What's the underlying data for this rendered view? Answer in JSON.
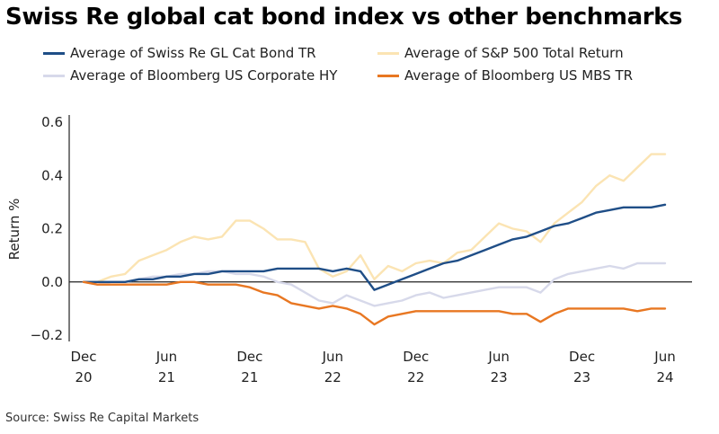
{
  "title": "Swiss Re global cat bond index vs other benchmarks",
  "source": "Source: Swiss Re Capital Markets",
  "chart_data": {
    "type": "line",
    "title": "Swiss Re global cat bond index vs other benchmarks",
    "xlabel": "",
    "ylabel": "Return %",
    "xlim": [
      "2020-12",
      "2024-06"
    ],
    "ylim": [
      -0.2,
      0.6
    ],
    "yticks": [
      "0.6",
      "0.4",
      "0.2",
      "0.0",
      "−0.2"
    ],
    "xticks": [
      {
        "date": "2020-12",
        "line1": "Dec",
        "line2": "20"
      },
      {
        "date": "2021-06",
        "line1": "Jun",
        "line2": "21"
      },
      {
        "date": "2021-12",
        "line1": "Dec",
        "line2": "21"
      },
      {
        "date": "2022-06",
        "line1": "Jun",
        "line2": "22"
      },
      {
        "date": "2022-12",
        "line1": "Dec",
        "line2": "22"
      },
      {
        "date": "2023-06",
        "line1": "Jun",
        "line2": "23"
      },
      {
        "date": "2023-12",
        "line1": "Dec",
        "line2": "23"
      },
      {
        "date": "2024-06",
        "line1": "Jun",
        "line2": "24"
      }
    ],
    "grid": false,
    "zero_line": true,
    "legend_position": "top",
    "x": [
      "2020-12",
      "2021-01",
      "2021-02",
      "2021-03",
      "2021-04",
      "2021-05",
      "2021-06",
      "2021-07",
      "2021-08",
      "2021-09",
      "2021-10",
      "2021-11",
      "2021-12",
      "2022-01",
      "2022-02",
      "2022-03",
      "2022-04",
      "2022-05",
      "2022-06",
      "2022-07",
      "2022-08",
      "2022-09",
      "2022-10",
      "2022-11",
      "2022-12",
      "2023-01",
      "2023-02",
      "2023-03",
      "2023-04",
      "2023-05",
      "2023-06",
      "2023-07",
      "2023-08",
      "2023-09",
      "2023-10",
      "2023-11",
      "2023-12",
      "2024-01",
      "2024-02",
      "2024-03",
      "2024-04",
      "2024-05",
      "2024-06"
    ],
    "series": [
      {
        "name": "Average of S&P 500 Total Return",
        "color": "#fbe4b3",
        "values": [
          0.0,
          0.0,
          0.02,
          0.03,
          0.08,
          0.1,
          0.12,
          0.15,
          0.17,
          0.16,
          0.17,
          0.23,
          0.23,
          0.2,
          0.16,
          0.16,
          0.15,
          0.05,
          0.02,
          0.04,
          0.1,
          0.01,
          0.06,
          0.04,
          0.07,
          0.08,
          0.07,
          0.11,
          0.12,
          0.17,
          0.22,
          0.2,
          0.19,
          0.15,
          0.22,
          0.26,
          0.3,
          0.36,
          0.4,
          0.38,
          0.43,
          0.48,
          0.48
        ]
      },
      {
        "name": "Average of Bloomberg US Corporate HY",
        "color": "#d7d9ea",
        "values": [
          0.0,
          -0.01,
          0.0,
          0.0,
          0.01,
          0.02,
          0.02,
          0.03,
          0.03,
          0.04,
          0.04,
          0.03,
          0.03,
          0.02,
          0.0,
          -0.01,
          -0.04,
          -0.07,
          -0.08,
          -0.05,
          -0.07,
          -0.09,
          -0.08,
          -0.07,
          -0.05,
          -0.04,
          -0.06,
          -0.05,
          -0.04,
          -0.03,
          -0.02,
          -0.02,
          -0.02,
          -0.04,
          0.01,
          0.03,
          0.04,
          0.05,
          0.06,
          0.05,
          0.07,
          0.07,
          0.07
        ]
      },
      {
        "name": "Average of Swiss Re GL Cat Bond TR",
        "color": "#1f4e87",
        "values": [
          0.0,
          0.0,
          0.0,
          0.0,
          0.01,
          0.01,
          0.02,
          0.02,
          0.03,
          0.03,
          0.04,
          0.04,
          0.04,
          0.04,
          0.05,
          0.05,
          0.05,
          0.05,
          0.04,
          0.05,
          0.04,
          -0.03,
          -0.01,
          0.01,
          0.03,
          0.05,
          0.07,
          0.08,
          0.1,
          0.12,
          0.14,
          0.16,
          0.17,
          0.19,
          0.21,
          0.22,
          0.24,
          0.26,
          0.27,
          0.28,
          0.28,
          0.28,
          0.29
        ]
      },
      {
        "name": "Average of Bloomberg US MBS TR",
        "color": "#e87722",
        "values": [
          0.0,
          -0.01,
          -0.01,
          -0.01,
          -0.01,
          -0.01,
          -0.01,
          0.0,
          0.0,
          -0.01,
          -0.01,
          -0.01,
          -0.02,
          -0.04,
          -0.05,
          -0.08,
          -0.09,
          -0.1,
          -0.09,
          -0.1,
          -0.12,
          -0.16,
          -0.13,
          -0.12,
          -0.11,
          -0.11,
          -0.11,
          -0.11,
          -0.11,
          -0.11,
          -0.11,
          -0.12,
          -0.12,
          -0.15,
          -0.12,
          -0.1,
          -0.1,
          -0.1,
          -0.1,
          -0.1,
          -0.11,
          -0.1,
          -0.1
        ]
      }
    ]
  },
  "legend": [
    {
      "label": "Average of Swiss Re GL Cat Bond TR",
      "color": "#1f4e87"
    },
    {
      "label": "Average of S&P 500 Total Return",
      "color": "#fbe4b3"
    },
    {
      "label": "Average of Bloomberg US Corporate HY",
      "color": "#d7d9ea"
    },
    {
      "label": "Average of Bloomberg US MBS TR",
      "color": "#e87722"
    }
  ]
}
